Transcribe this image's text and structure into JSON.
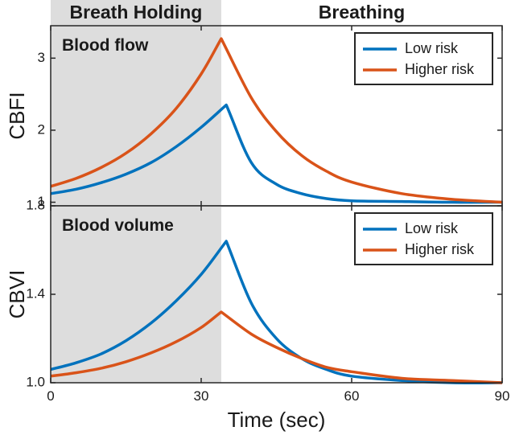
{
  "phases": {
    "breath_holding": "Breath Holding",
    "breathing": "Breathing",
    "breath_hold_end_sec": 34,
    "shade_color": "#dddddd"
  },
  "xaxis": {
    "label": "Time (sec)",
    "xlim": [
      0,
      90
    ],
    "ticks": [
      0,
      30,
      60,
      90
    ],
    "tick_labels": [
      "0",
      "30",
      "60",
      "90"
    ]
  },
  "colors": {
    "low_risk": "#0072bd",
    "higher_risk": "#d95319"
  },
  "chart_data": [
    {
      "type": "line",
      "title": "Blood flow",
      "ylabel": "CBFI",
      "ylim": [
        0.95,
        3.45
      ],
      "yticks": [
        1,
        2,
        3
      ],
      "ytick_labels": [
        "1",
        "2",
        "3"
      ],
      "legend_position": "top-right",
      "series": [
        {
          "name": "Low risk",
          "x": [
            0,
            5,
            10,
            15,
            20,
            25,
            30,
            35,
            40,
            45,
            50,
            55,
            60,
            70,
            80,
            90
          ],
          "y": [
            1.12,
            1.18,
            1.27,
            1.39,
            1.55,
            1.77,
            2.04,
            2.35,
            1.55,
            1.25,
            1.12,
            1.05,
            1.02,
            1.01,
            1.0,
            1.0
          ]
        },
        {
          "name": "Higher risk",
          "x": [
            0,
            5,
            10,
            15,
            20,
            25,
            30,
            34,
            40,
            45,
            50,
            55,
            60,
            70,
            80,
            90
          ],
          "y": [
            1.22,
            1.33,
            1.48,
            1.68,
            1.95,
            2.3,
            2.78,
            3.27,
            2.45,
            1.98,
            1.65,
            1.43,
            1.28,
            1.12,
            1.04,
            1.0
          ]
        }
      ]
    },
    {
      "type": "line",
      "title": "Blood volume",
      "ylabel": "CBVI",
      "ylim": [
        1.0,
        1.8
      ],
      "yticks": [
        1.0,
        1.4,
        1.8
      ],
      "ytick_labels": [
        "1.0",
        "1.4",
        "1.8"
      ],
      "legend_position": "top-right",
      "series": [
        {
          "name": "Low risk",
          "x": [
            0,
            5,
            10,
            15,
            20,
            25,
            30,
            35,
            40,
            45,
            50,
            55,
            60,
            70,
            80,
            90
          ],
          "y": [
            1.06,
            1.09,
            1.13,
            1.19,
            1.27,
            1.37,
            1.49,
            1.64,
            1.36,
            1.2,
            1.11,
            1.06,
            1.03,
            1.01,
            1.0,
            1.0
          ]
        },
        {
          "name": "Higher risk",
          "x": [
            0,
            5,
            10,
            15,
            20,
            25,
            30,
            34,
            40,
            45,
            50,
            55,
            60,
            70,
            80,
            90
          ],
          "y": [
            1.03,
            1.045,
            1.065,
            1.095,
            1.135,
            1.185,
            1.25,
            1.32,
            1.22,
            1.16,
            1.11,
            1.07,
            1.05,
            1.02,
            1.01,
            1.0
          ]
        }
      ]
    }
  ]
}
